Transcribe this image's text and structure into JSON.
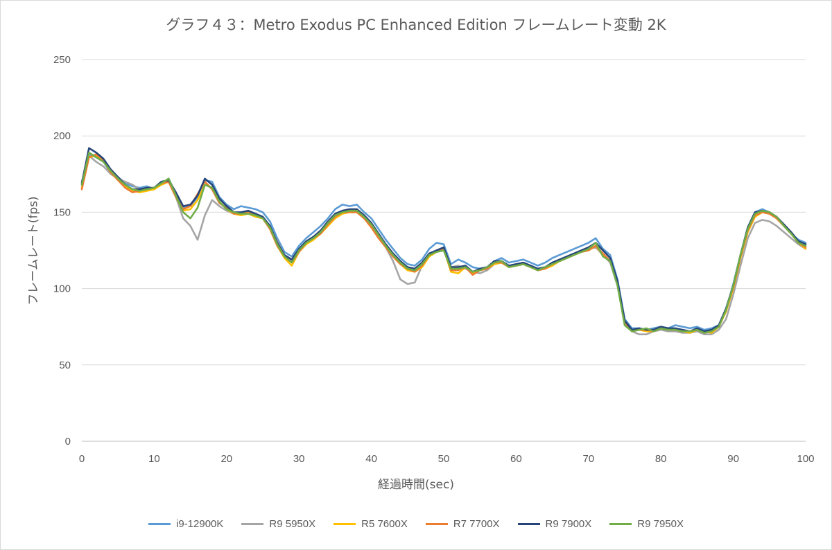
{
  "chart_data": {
    "type": "line",
    "title": "グラフ４３：Metro Exodus PC Enhanced Edition フレームレート変動 2K",
    "xlabel": "経過時間(sec)",
    "ylabel": "フレームレート(fps)",
    "xlim": [
      0,
      100
    ],
    "ylim": [
      0,
      250
    ],
    "xticks": [
      0,
      10,
      20,
      30,
      40,
      50,
      60,
      70,
      80,
      90,
      100
    ],
    "yticks": [
      0,
      50,
      100,
      150,
      200,
      250
    ],
    "grid": "horizontal",
    "legend_position": "bottom",
    "series": [
      {
        "name": "i9-12900K",
        "color": "#5B9BD5",
        "x": [
          0,
          1,
          2,
          3,
          4,
          5,
          6,
          7,
          8,
          9,
          10,
          11,
          12,
          13,
          14,
          15,
          16,
          17,
          18,
          19,
          20,
          21,
          22,
          23,
          24,
          25,
          26,
          27,
          28,
          29,
          30,
          31,
          32,
          33,
          34,
          35,
          36,
          37,
          38,
          39,
          40,
          41,
          42,
          43,
          44,
          45,
          46,
          47,
          48,
          49,
          50,
          51,
          52,
          53,
          54,
          55,
          56,
          57,
          58,
          59,
          60,
          61,
          62,
          63,
          64,
          65,
          66,
          67,
          68,
          69,
          70,
          71,
          72,
          73,
          74,
          75,
          76,
          77,
          78,
          79,
          80,
          81,
          82,
          83,
          84,
          85,
          86,
          87,
          88,
          89,
          90,
          91,
          92,
          93,
          94,
          95,
          96,
          97,
          98,
          99,
          100
        ],
        "y": [
          168,
          188,
          186,
          183,
          176,
          173,
          169,
          167,
          166,
          167,
          165,
          169,
          172,
          162,
          153,
          154,
          160,
          171,
          170,
          160,
          155,
          152,
          154,
          153,
          152,
          150,
          144,
          133,
          124,
          121,
          128,
          133,
          137,
          141,
          146,
          152,
          155,
          154,
          155,
          150,
          146,
          139,
          132,
          126,
          120,
          116,
          115,
          119,
          126,
          130,
          129,
          116,
          119,
          117,
          114,
          113,
          114,
          118,
          120,
          117,
          118,
          119,
          117,
          115,
          117,
          120,
          122,
          124,
          126,
          128,
          130,
          133,
          126,
          122,
          106,
          80,
          74,
          74,
          73,
          74,
          75,
          74,
          76,
          75,
          74,
          75,
          73,
          74,
          76,
          86,
          103,
          122,
          140,
          150,
          152,
          150,
          146,
          141,
          136,
          132,
          130
        ]
      },
      {
        "name": "R9 5950X",
        "color": "#A5A5A5",
        "x": [
          0,
          1,
          2,
          3,
          4,
          5,
          6,
          7,
          8,
          9,
          10,
          11,
          12,
          13,
          14,
          15,
          16,
          17,
          18,
          19,
          20,
          21,
          22,
          23,
          24,
          25,
          26,
          27,
          28,
          29,
          30,
          31,
          32,
          33,
          34,
          35,
          36,
          37,
          38,
          39,
          40,
          41,
          42,
          43,
          44,
          45,
          46,
          47,
          48,
          49,
          50,
          51,
          52,
          53,
          54,
          55,
          56,
          57,
          58,
          59,
          60,
          61,
          62,
          63,
          64,
          65,
          66,
          67,
          68,
          69,
          70,
          71,
          72,
          73,
          74,
          75,
          76,
          77,
          78,
          79,
          80,
          81,
          82,
          83,
          84,
          85,
          86,
          87,
          88,
          89,
          90,
          91,
          92,
          93,
          94,
          95,
          96,
          97,
          98,
          99,
          100
        ],
        "y": [
          170,
          187,
          183,
          180,
          175,
          172,
          170,
          168,
          165,
          165,
          166,
          168,
          170,
          160,
          146,
          141,
          132,
          148,
          158,
          154,
          151,
          149,
          149,
          150,
          148,
          147,
          140,
          131,
          122,
          118,
          125,
          130,
          133,
          136,
          142,
          148,
          151,
          151,
          150,
          147,
          141,
          134,
          127,
          118,
          106,
          103,
          104,
          115,
          121,
          124,
          125,
          114,
          115,
          113,
          111,
          110,
          112,
          116,
          117,
          115,
          115,
          116,
          115,
          113,
          114,
          116,
          118,
          120,
          122,
          124,
          126,
          127,
          122,
          117,
          102,
          78,
          72,
          70,
          70,
          72,
          73,
          72,
          72,
          71,
          71,
          72,
          70,
          70,
          73,
          80,
          96,
          115,
          133,
          143,
          145,
          144,
          141,
          137,
          133,
          129,
          126
        ]
      },
      {
        "name": "R5 7600X",
        "color": "#FFC000",
        "x": [
          0,
          1,
          2,
          3,
          4,
          5,
          6,
          7,
          8,
          9,
          10,
          11,
          12,
          13,
          14,
          15,
          16,
          17,
          18,
          19,
          20,
          21,
          22,
          23,
          24,
          25,
          26,
          27,
          28,
          29,
          30,
          31,
          32,
          33,
          34,
          35,
          36,
          37,
          38,
          39,
          40,
          41,
          42,
          43,
          44,
          45,
          46,
          47,
          48,
          49,
          50,
          51,
          52,
          53,
          54,
          55,
          56,
          57,
          58,
          59,
          60,
          61,
          62,
          63,
          64,
          65,
          66,
          67,
          68,
          69,
          70,
          71,
          72,
          73,
          74,
          75,
          76,
          77,
          78,
          79,
          80,
          81,
          82,
          83,
          84,
          85,
          86,
          87,
          88,
          89,
          90,
          91,
          92,
          93,
          94,
          95,
          96,
          97,
          98,
          99,
          100
        ],
        "y": [
          166,
          186,
          187,
          184,
          176,
          172,
          167,
          164,
          163,
          164,
          165,
          168,
          170,
          160,
          151,
          152,
          158,
          168,
          166,
          157,
          152,
          149,
          148,
          149,
          147,
          146,
          139,
          128,
          120,
          115,
          124,
          129,
          132,
          136,
          141,
          146,
          149,
          150,
          150,
          146,
          141,
          134,
          127,
          121,
          116,
          112,
          111,
          114,
          121,
          124,
          126,
          111,
          110,
          114,
          110,
          112,
          113,
          116,
          117,
          114,
          115,
          116,
          114,
          112,
          113,
          115,
          118,
          120,
          122,
          124,
          125,
          128,
          122,
          118,
          104,
          78,
          72,
          73,
          72,
          72,
          74,
          73,
          73,
          72,
          71,
          73,
          72,
          71,
          75,
          85,
          100,
          120,
          137,
          147,
          150,
          149,
          146,
          141,
          136,
          130,
          126
        ]
      },
      {
        "name": "R7 7700X",
        "color": "#ED7D31",
        "x": [
          0,
          1,
          2,
          3,
          4,
          5,
          6,
          7,
          8,
          9,
          10,
          11,
          12,
          13,
          14,
          15,
          16,
          17,
          18,
          19,
          20,
          21,
          22,
          23,
          24,
          25,
          26,
          27,
          28,
          29,
          30,
          31,
          32,
          33,
          34,
          35,
          36,
          37,
          38,
          39,
          40,
          41,
          42,
          43,
          44,
          45,
          46,
          47,
          48,
          49,
          50,
          51,
          52,
          53,
          54,
          55,
          56,
          57,
          58,
          59,
          60,
          61,
          62,
          63,
          64,
          65,
          66,
          67,
          68,
          69,
          70,
          71,
          72,
          73,
          74,
          75,
          76,
          77,
          78,
          79,
          80,
          81,
          82,
          83,
          84,
          85,
          86,
          87,
          88,
          89,
          90,
          91,
          92,
          93,
          94,
          95,
          96,
          97,
          98,
          99,
          100
        ],
        "y": [
          165,
          186,
          188,
          184,
          176,
          171,
          166,
          163,
          164,
          165,
          166,
          169,
          170,
          160,
          152,
          154,
          162,
          170,
          165,
          156,
          153,
          149,
          149,
          150,
          148,
          146,
          139,
          128,
          121,
          117,
          124,
          130,
          133,
          136,
          142,
          147,
          150,
          150,
          150,
          146,
          140,
          133,
          127,
          121,
          116,
          113,
          111,
          115,
          122,
          125,
          126,
          112,
          112,
          114,
          109,
          112,
          113,
          117,
          117,
          114,
          115,
          116,
          114,
          112,
          113,
          116,
          118,
          120,
          122,
          124,
          125,
          128,
          123,
          118,
          103,
          78,
          72,
          73,
          73,
          72,
          74,
          73,
          73,
          72,
          72,
          73,
          71,
          72,
          75,
          86,
          101,
          121,
          138,
          148,
          150,
          149,
          146,
          141,
          136,
          130,
          127
        ]
      },
      {
        "name": "R9 7900X",
        "color": "#264478",
        "x": [
          0,
          1,
          2,
          3,
          4,
          5,
          6,
          7,
          8,
          9,
          10,
          11,
          12,
          13,
          14,
          15,
          16,
          17,
          18,
          19,
          20,
          21,
          22,
          23,
          24,
          25,
          26,
          27,
          28,
          29,
          30,
          31,
          32,
          33,
          34,
          35,
          36,
          37,
          38,
          39,
          40,
          41,
          42,
          43,
          44,
          45,
          46,
          47,
          48,
          49,
          50,
          51,
          52,
          53,
          54,
          55,
          56,
          57,
          58,
          59,
          60,
          61,
          62,
          63,
          64,
          65,
          66,
          67,
          68,
          69,
          70,
          71,
          72,
          73,
          74,
          75,
          76,
          77,
          78,
          79,
          80,
          81,
          82,
          83,
          84,
          85,
          86,
          87,
          88,
          89,
          90,
          91,
          92,
          93,
          94,
          95,
          96,
          97,
          98,
          99,
          100
        ],
        "y": [
          169,
          192,
          189,
          185,
          178,
          173,
          168,
          165,
          165,
          166,
          166,
          170,
          171,
          163,
          154,
          155,
          161,
          172,
          168,
          159,
          154,
          150,
          150,
          151,
          149,
          147,
          141,
          130,
          122,
          119,
          126,
          131,
          134,
          138,
          144,
          149,
          151,
          152,
          152,
          148,
          143,
          136,
          129,
          123,
          118,
          114,
          113,
          117,
          123,
          125,
          127,
          114,
          114,
          115,
          111,
          113,
          114,
          118,
          118,
          115,
          116,
          117,
          115,
          113,
          114,
          117,
          119,
          121,
          123,
          125,
          127,
          130,
          125,
          120,
          105,
          79,
          73,
          74,
          73,
          73,
          75,
          74,
          74,
          73,
          72,
          74,
          72,
          73,
          76,
          87,
          102,
          122,
          140,
          150,
          151,
          150,
          147,
          142,
          137,
          131,
          129
        ]
      },
      {
        "name": "R9 7950X",
        "color": "#70AD47",
        "x": [
          0,
          1,
          2,
          3,
          4,
          5,
          6,
          7,
          8,
          9,
          10,
          11,
          12,
          13,
          14,
          15,
          16,
          17,
          18,
          19,
          20,
          21,
          22,
          23,
          24,
          25,
          26,
          27,
          28,
          29,
          30,
          31,
          32,
          33,
          34,
          35,
          36,
          37,
          38,
          39,
          40,
          41,
          42,
          43,
          44,
          45,
          46,
          47,
          48,
          49,
          50,
          51,
          52,
          53,
          54,
          55,
          56,
          57,
          58,
          59,
          60,
          61,
          62,
          63,
          64,
          65,
          66,
          67,
          68,
          69,
          70,
          71,
          72,
          73,
          74,
          75,
          76,
          77,
          78,
          79,
          80,
          81,
          82,
          83,
          84,
          85,
          86,
          87,
          88,
          89,
          90,
          91,
          92,
          93,
          94,
          95,
          96,
          97,
          98,
          99,
          100
        ],
        "y": [
          168,
          189,
          186,
          183,
          177,
          172,
          168,
          165,
          164,
          165,
          166,
          169,
          172,
          161,
          150,
          146,
          153,
          168,
          166,
          157,
          152,
          150,
          149,
          149,
          148,
          146,
          140,
          129,
          121,
          117,
          125,
          130,
          133,
          137,
          143,
          148,
          150,
          151,
          151,
          147,
          142,
          135,
          128,
          122,
          117,
          113,
          112,
          116,
          122,
          124,
          125,
          113,
          113,
          114,
          111,
          112,
          114,
          117,
          118,
          114,
          115,
          116,
          114,
          112,
          114,
          116,
          118,
          120,
          122,
          124,
          126,
          130,
          121,
          118,
          102,
          76,
          72,
          73,
          74,
          72,
          74,
          73,
          73,
          72,
          72,
          73,
          71,
          72,
          75,
          86,
          102,
          122,
          139,
          149,
          151,
          150,
          147,
          141,
          136,
          130,
          128
        ]
      }
    ]
  }
}
